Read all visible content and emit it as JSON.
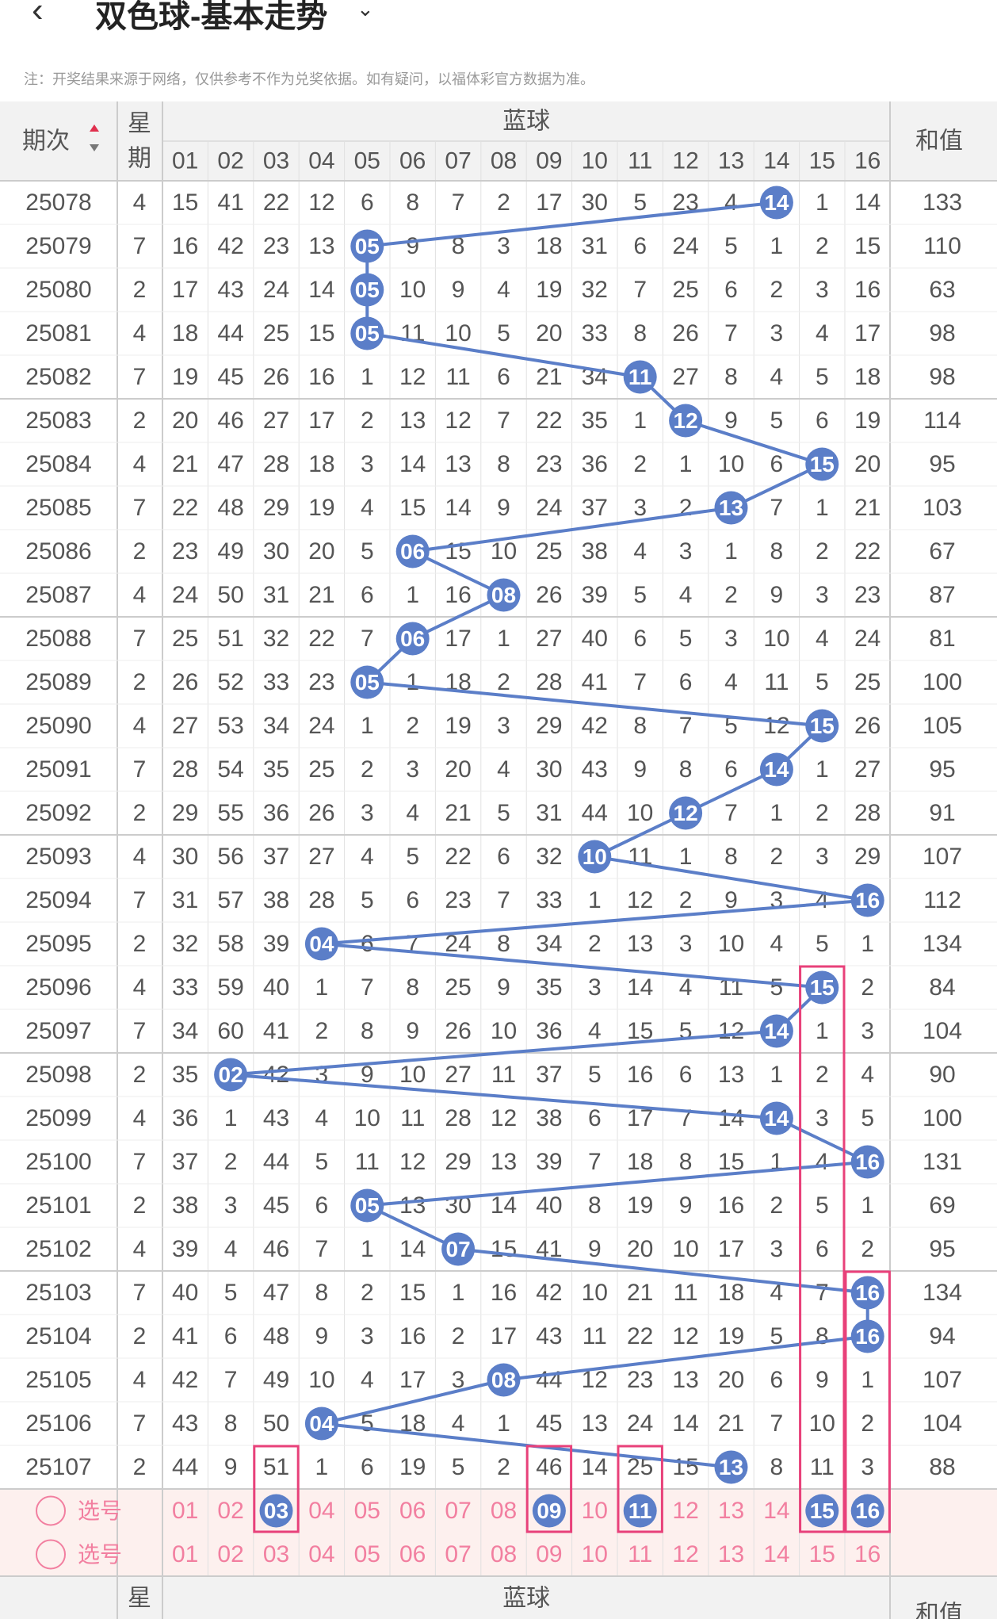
{
  "header": {
    "back_icon": "chevron-left-icon",
    "title": "双色球-基本走势",
    "dropdown_icon": "chevron-down-icon"
  },
  "notice": "注：开奖结果来源于网络，仅供参考不作为兑奖依据。如有疑问，以福体彩官方数据为准。",
  "table": {
    "col_period": "期次",
    "col_week_1": "星",
    "col_week_2": "期",
    "col_blue": "蓝球",
    "col_sum": "和值",
    "blue_headers": [
      "01",
      "02",
      "03",
      "04",
      "05",
      "06",
      "07",
      "08",
      "09",
      "10",
      "11",
      "12",
      "13",
      "14",
      "15",
      "16"
    ],
    "rows": [
      {
        "period": "25078",
        "week": "4",
        "cells": [
          "15",
          "41",
          "22",
          "12",
          "6",
          "8",
          "7",
          "2",
          "17",
          "30",
          "5",
          "23",
          "4",
          "14",
          "1",
          "14"
        ],
        "hit": 14,
        "sum": "133"
      },
      {
        "period": "25079",
        "week": "7",
        "cells": [
          "16",
          "42",
          "23",
          "13",
          "05",
          "9",
          "8",
          "3",
          "18",
          "31",
          "6",
          "24",
          "5",
          "1",
          "2",
          "15"
        ],
        "hit": 5,
        "sum": "110"
      },
      {
        "period": "25080",
        "week": "2",
        "cells": [
          "17",
          "43",
          "24",
          "14",
          "05",
          "10",
          "9",
          "4",
          "19",
          "32",
          "7",
          "25",
          "6",
          "2",
          "3",
          "16"
        ],
        "hit": 5,
        "sum": "63"
      },
      {
        "period": "25081",
        "week": "4",
        "cells": [
          "18",
          "44",
          "25",
          "15",
          "05",
          "11",
          "10",
          "5",
          "20",
          "33",
          "8",
          "26",
          "7",
          "3",
          "4",
          "17"
        ],
        "hit": 5,
        "sum": "98"
      },
      {
        "period": "25082",
        "week": "7",
        "cells": [
          "19",
          "45",
          "26",
          "16",
          "1",
          "12",
          "11",
          "6",
          "21",
          "34",
          "11",
          "27",
          "8",
          "4",
          "5",
          "18"
        ],
        "hit": 11,
        "sum": "98"
      },
      {
        "period": "25083",
        "week": "2",
        "cells": [
          "20",
          "46",
          "27",
          "17",
          "2",
          "13",
          "12",
          "7",
          "22",
          "35",
          "1",
          "12",
          "9",
          "5",
          "6",
          "19"
        ],
        "hit": 12,
        "sum": "114"
      },
      {
        "period": "25084",
        "week": "4",
        "cells": [
          "21",
          "47",
          "28",
          "18",
          "3",
          "14",
          "13",
          "8",
          "23",
          "36",
          "2",
          "1",
          "10",
          "6",
          "15",
          "20"
        ],
        "hit": 15,
        "sum": "95"
      },
      {
        "period": "25085",
        "week": "7",
        "cells": [
          "22",
          "48",
          "29",
          "19",
          "4",
          "15",
          "14",
          "9",
          "24",
          "37",
          "3",
          "2",
          "13",
          "7",
          "1",
          "21"
        ],
        "hit": 13,
        "sum": "103"
      },
      {
        "period": "25086",
        "week": "2",
        "cells": [
          "23",
          "49",
          "30",
          "20",
          "5",
          "06",
          "15",
          "10",
          "25",
          "38",
          "4",
          "3",
          "1",
          "8",
          "2",
          "22"
        ],
        "hit": 6,
        "sum": "67"
      },
      {
        "period": "25087",
        "week": "4",
        "cells": [
          "24",
          "50",
          "31",
          "21",
          "6",
          "1",
          "16",
          "08",
          "26",
          "39",
          "5",
          "4",
          "2",
          "9",
          "3",
          "23"
        ],
        "hit": 8,
        "sum": "87"
      },
      {
        "period": "25088",
        "week": "7",
        "cells": [
          "25",
          "51",
          "32",
          "22",
          "7",
          "06",
          "17",
          "1",
          "27",
          "40",
          "6",
          "5",
          "3",
          "10",
          "4",
          "24"
        ],
        "hit": 6,
        "sum": "81"
      },
      {
        "period": "25089",
        "week": "2",
        "cells": [
          "26",
          "52",
          "33",
          "23",
          "05",
          "1",
          "18",
          "2",
          "28",
          "41",
          "7",
          "6",
          "4",
          "11",
          "5",
          "25"
        ],
        "hit": 5,
        "sum": "100"
      },
      {
        "period": "25090",
        "week": "4",
        "cells": [
          "27",
          "53",
          "34",
          "24",
          "1",
          "2",
          "19",
          "3",
          "29",
          "42",
          "8",
          "7",
          "5",
          "12",
          "15",
          "26"
        ],
        "hit": 15,
        "sum": "105"
      },
      {
        "period": "25091",
        "week": "7",
        "cells": [
          "28",
          "54",
          "35",
          "25",
          "2",
          "3",
          "20",
          "4",
          "30",
          "43",
          "9",
          "8",
          "6",
          "14",
          "1",
          "27"
        ],
        "hit": 14,
        "sum": "95"
      },
      {
        "period": "25092",
        "week": "2",
        "cells": [
          "29",
          "55",
          "36",
          "26",
          "3",
          "4",
          "21",
          "5",
          "31",
          "44",
          "10",
          "12",
          "7",
          "1",
          "2",
          "28"
        ],
        "hit": 12,
        "sum": "91"
      },
      {
        "period": "25093",
        "week": "4",
        "cells": [
          "30",
          "56",
          "37",
          "27",
          "4",
          "5",
          "22",
          "6",
          "32",
          "10",
          "11",
          "1",
          "8",
          "2",
          "3",
          "29"
        ],
        "hit": 10,
        "sum": "107"
      },
      {
        "period": "25094",
        "week": "7",
        "cells": [
          "31",
          "57",
          "38",
          "28",
          "5",
          "6",
          "23",
          "7",
          "33",
          "1",
          "12",
          "2",
          "9",
          "3",
          "4",
          "16"
        ],
        "hit": 16,
        "sum": "112"
      },
      {
        "period": "25095",
        "week": "2",
        "cells": [
          "32",
          "58",
          "39",
          "04",
          "6",
          "7",
          "24",
          "8",
          "34",
          "2",
          "13",
          "3",
          "10",
          "4",
          "5",
          "1"
        ],
        "hit": 4,
        "sum": "134"
      },
      {
        "period": "25096",
        "week": "4",
        "cells": [
          "33",
          "59",
          "40",
          "1",
          "7",
          "8",
          "25",
          "9",
          "35",
          "3",
          "14",
          "4",
          "11",
          "5",
          "15",
          "2"
        ],
        "hit": 15,
        "sum": "84"
      },
      {
        "period": "25097",
        "week": "7",
        "cells": [
          "34",
          "60",
          "41",
          "2",
          "8",
          "9",
          "26",
          "10",
          "36",
          "4",
          "15",
          "5",
          "12",
          "14",
          "1",
          "3"
        ],
        "hit": 14,
        "sum": "104"
      },
      {
        "period": "25098",
        "week": "2",
        "cells": [
          "35",
          "02",
          "42",
          "3",
          "9",
          "10",
          "27",
          "11",
          "37",
          "5",
          "16",
          "6",
          "13",
          "1",
          "2",
          "4"
        ],
        "hit": 2,
        "sum": "90"
      },
      {
        "period": "25099",
        "week": "4",
        "cells": [
          "36",
          "1",
          "43",
          "4",
          "10",
          "11",
          "28",
          "12",
          "38",
          "6",
          "17",
          "7",
          "14",
          "14",
          "3",
          "5"
        ],
        "hit": 14,
        "sum": "100"
      },
      {
        "period": "25100",
        "week": "7",
        "cells": [
          "37",
          "2",
          "44",
          "5",
          "11",
          "12",
          "29",
          "13",
          "39",
          "7",
          "18",
          "8",
          "15",
          "1",
          "4",
          "16"
        ],
        "hit": 16,
        "sum": "131"
      },
      {
        "period": "25101",
        "week": "2",
        "cells": [
          "38",
          "3",
          "45",
          "6",
          "05",
          "13",
          "30",
          "14",
          "40",
          "8",
          "19",
          "9",
          "16",
          "2",
          "5",
          "1"
        ],
        "hit": 5,
        "sum": "69"
      },
      {
        "period": "25102",
        "week": "4",
        "cells": [
          "39",
          "4",
          "46",
          "7",
          "1",
          "14",
          "07",
          "15",
          "41",
          "9",
          "20",
          "10",
          "17",
          "3",
          "6",
          "2"
        ],
        "hit": 7,
        "sum": "95"
      },
      {
        "period": "25103",
        "week": "7",
        "cells": [
          "40",
          "5",
          "47",
          "8",
          "2",
          "15",
          "1",
          "16",
          "42",
          "10",
          "21",
          "11",
          "18",
          "4",
          "7",
          "16"
        ],
        "hit": 16,
        "sum": "134"
      },
      {
        "period": "25104",
        "week": "2",
        "cells": [
          "41",
          "6",
          "48",
          "9",
          "3",
          "16",
          "2",
          "17",
          "43",
          "11",
          "22",
          "12",
          "19",
          "5",
          "8",
          "16"
        ],
        "hit": 16,
        "sum": "94"
      },
      {
        "period": "25105",
        "week": "4",
        "cells": [
          "42",
          "7",
          "49",
          "10",
          "4",
          "17",
          "3",
          "08",
          "44",
          "12",
          "23",
          "13",
          "20",
          "6",
          "9",
          "1"
        ],
        "hit": 8,
        "sum": "107"
      },
      {
        "period": "25106",
        "week": "7",
        "cells": [
          "43",
          "8",
          "50",
          "04",
          "5",
          "18",
          "4",
          "1",
          "45",
          "13",
          "24",
          "14",
          "21",
          "7",
          "10",
          "2"
        ],
        "hit": 4,
        "sum": "104"
      },
      {
        "period": "25107",
        "week": "2",
        "cells": [
          "44",
          "9",
          "51",
          "1",
          "6",
          "19",
          "5",
          "2",
          "46",
          "14",
          "25",
          "15",
          "13",
          "8",
          "11",
          "3"
        ],
        "hit": 13,
        "sum": "88"
      }
    ],
    "select_rows": [
      {
        "label": "选号",
        "selected": [
          3,
          9,
          11,
          15,
          16
        ]
      },
      {
        "label": "选号",
        "selected": []
      }
    ],
    "footer_week": "星",
    "footer_blue": "蓝球",
    "footer_sum": "和值"
  },
  "colors": {
    "ball": "#5b7ec8",
    "line": "#5b7ec8",
    "highlight_box": "#e8417a",
    "select_bg": "#fdf0ee",
    "select_text": "#f27fa0",
    "header_bg": "#f2f2f2",
    "grid": "#e0e0e0"
  }
}
